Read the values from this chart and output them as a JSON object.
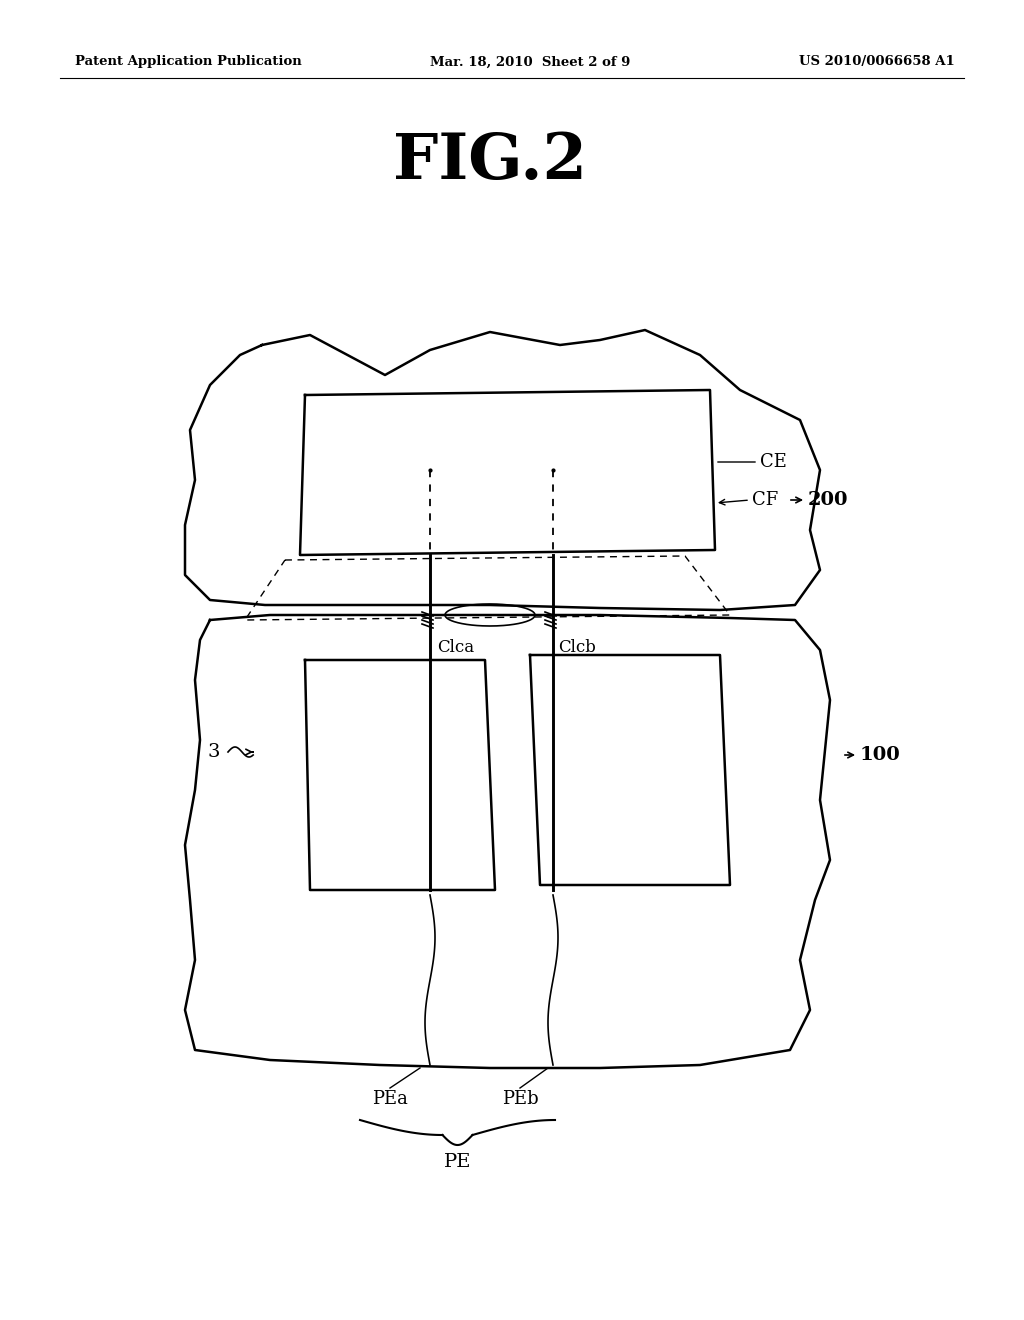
{
  "bg_color": "#ffffff",
  "line_color": "#000000",
  "header_left": "Patent Application Publication",
  "header_mid": "Mar. 18, 2010  Sheet 2 of 9",
  "header_right": "US 2010/0066658 A1",
  "fig_title": "FIG.2",
  "label_CE": "CE",
  "label_CF": "CF",
  "label_200": "200",
  "label_100": "100",
  "label_3": "3",
  "label_Clca": "Clca",
  "label_Clcb": "Clcb",
  "label_PEa": "PEa",
  "label_PEb": "PEb",
  "label_PE": "PE"
}
